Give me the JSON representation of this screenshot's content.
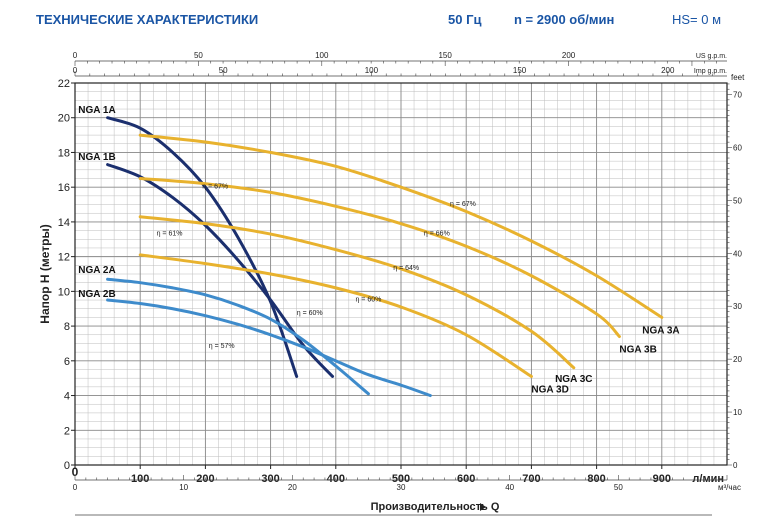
{
  "header": {
    "title": "ТЕХНИЧЕСКИЕ ХАРАКТЕРИСТИКИ",
    "frequency": "50 Гц",
    "speed": "n  = 2900 об/мин",
    "hs": "HS= 0 м"
  },
  "chart_data": {
    "type": "line",
    "ylabel": "Напор H (метры)",
    "xlabel": "Производительность Q",
    "x_unit": "л/мин",
    "secondary_x_units": [
      "м³/час",
      "US g.p.m.",
      "Imp g.p.m."
    ],
    "secondary_y_unit": "feet",
    "xlim": [
      0,
      1000
    ],
    "ylim": [
      0,
      22
    ],
    "x_ticks": [
      0,
      100,
      200,
      300,
      400,
      500,
      600,
      700,
      800,
      900
    ],
    "y_ticks": [
      0,
      2,
      4,
      6,
      8,
      10,
      12,
      14,
      16,
      18,
      20,
      22
    ],
    "m3h_ticks": [
      0,
      10,
      20,
      30,
      40,
      50
    ],
    "usgpm_ticks": [
      0,
      50,
      100,
      150,
      200
    ],
    "impgpm_ticks": [
      0,
      50,
      100,
      150,
      200
    ],
    "feet_ticks": [
      0,
      10,
      20,
      30,
      40,
      50,
      60,
      70
    ],
    "grid": true,
    "colors": {
      "nga1": "#1b2f6e",
      "nga2": "#3e8bcb",
      "nga3": "#e8b22e",
      "axis": "#222222"
    },
    "series": [
      {
        "name": "NGA 1A",
        "color_key": "nga1",
        "x": [
          50,
          100,
          150,
          200,
          250,
          300,
          340
        ],
        "y": [
          20.0,
          19.4,
          18.0,
          16.0,
          13.1,
          9.4,
          5.1
        ],
        "label_x": 5,
        "label_y": 20.5,
        "anchor": "start"
      },
      {
        "name": "NGA 1B",
        "color_key": "nga1",
        "x": [
          50,
          100,
          150,
          200,
          250,
          300,
          350,
          395
        ],
        "y": [
          17.3,
          16.6,
          15.4,
          13.8,
          11.8,
          9.5,
          6.9,
          5.1
        ],
        "label_x": 5,
        "label_y": 17.8,
        "anchor": "start"
      },
      {
        "name": "NGA 2A",
        "color_key": "nga2",
        "x": [
          50,
          100,
          150,
          200,
          250,
          300,
          350,
          400,
          450
        ],
        "y": [
          10.7,
          10.5,
          10.2,
          9.8,
          9.2,
          8.4,
          7.2,
          5.7,
          4.1
        ],
        "label_x": 5,
        "label_y": 11.3,
        "anchor": "start"
      },
      {
        "name": "NGA 2B",
        "color_key": "nga2",
        "x": [
          50,
          100,
          150,
          200,
          250,
          300,
          350,
          400,
          450,
          500,
          545
        ],
        "y": [
          9.5,
          9.3,
          9.0,
          8.6,
          8.1,
          7.5,
          6.8,
          6.0,
          5.2,
          4.6,
          4.0
        ],
        "label_x": 5,
        "label_y": 9.9,
        "anchor": "start"
      },
      {
        "name": "NGA 3A",
        "color_key": "nga3",
        "x": [
          100,
          200,
          300,
          400,
          500,
          600,
          700,
          800,
          900
        ],
        "y": [
          19.0,
          18.6,
          18.0,
          17.2,
          16.0,
          14.6,
          12.9,
          10.9,
          8.5
        ],
        "label_x": 870,
        "label_y": 7.8,
        "anchor": "start"
      },
      {
        "name": "NGA 3B",
        "color_key": "nga3",
        "x": [
          100,
          200,
          300,
          400,
          500,
          600,
          700,
          800,
          835
        ],
        "y": [
          16.5,
          16.2,
          15.7,
          14.9,
          13.9,
          12.6,
          10.9,
          8.7,
          7.4
        ],
        "label_x": 835,
        "label_y": 6.7,
        "anchor": "start"
      },
      {
        "name": "NGA 3C",
        "color_key": "nga3",
        "x": [
          100,
          200,
          300,
          400,
          500,
          600,
          700,
          765
        ],
        "y": [
          14.3,
          13.9,
          13.3,
          12.4,
          11.3,
          9.8,
          7.7,
          5.6
        ],
        "label_x": 765,
        "label_y": 5.0,
        "anchor": "middle"
      },
      {
        "name": "NGA 3D",
        "color_key": "nga3",
        "x": [
          100,
          200,
          300,
          400,
          500,
          600,
          700
        ],
        "y": [
          12.1,
          11.6,
          11.0,
          10.2,
          9.1,
          7.5,
          5.1
        ],
        "label_x": 700,
        "label_y": 4.4,
        "anchor": "start"
      }
    ],
    "annotations": [
      {
        "text": "η = 67%",
        "x": 215,
        "y": 16.1
      },
      {
        "text": "η = 61%",
        "x": 145,
        "y": 13.4
      },
      {
        "text": "η = 60%",
        "x": 360,
        "y": 8.8
      },
      {
        "text": "η = 57%",
        "x": 225,
        "y": 6.9
      },
      {
        "text": "η = 67%",
        "x": 595,
        "y": 15.1
      },
      {
        "text": "η = 66%",
        "x": 555,
        "y": 13.4
      },
      {
        "text": "η = 64%",
        "x": 508,
        "y": 11.4
      },
      {
        "text": "η = 60%",
        "x": 450,
        "y": 9.6
      }
    ]
  }
}
